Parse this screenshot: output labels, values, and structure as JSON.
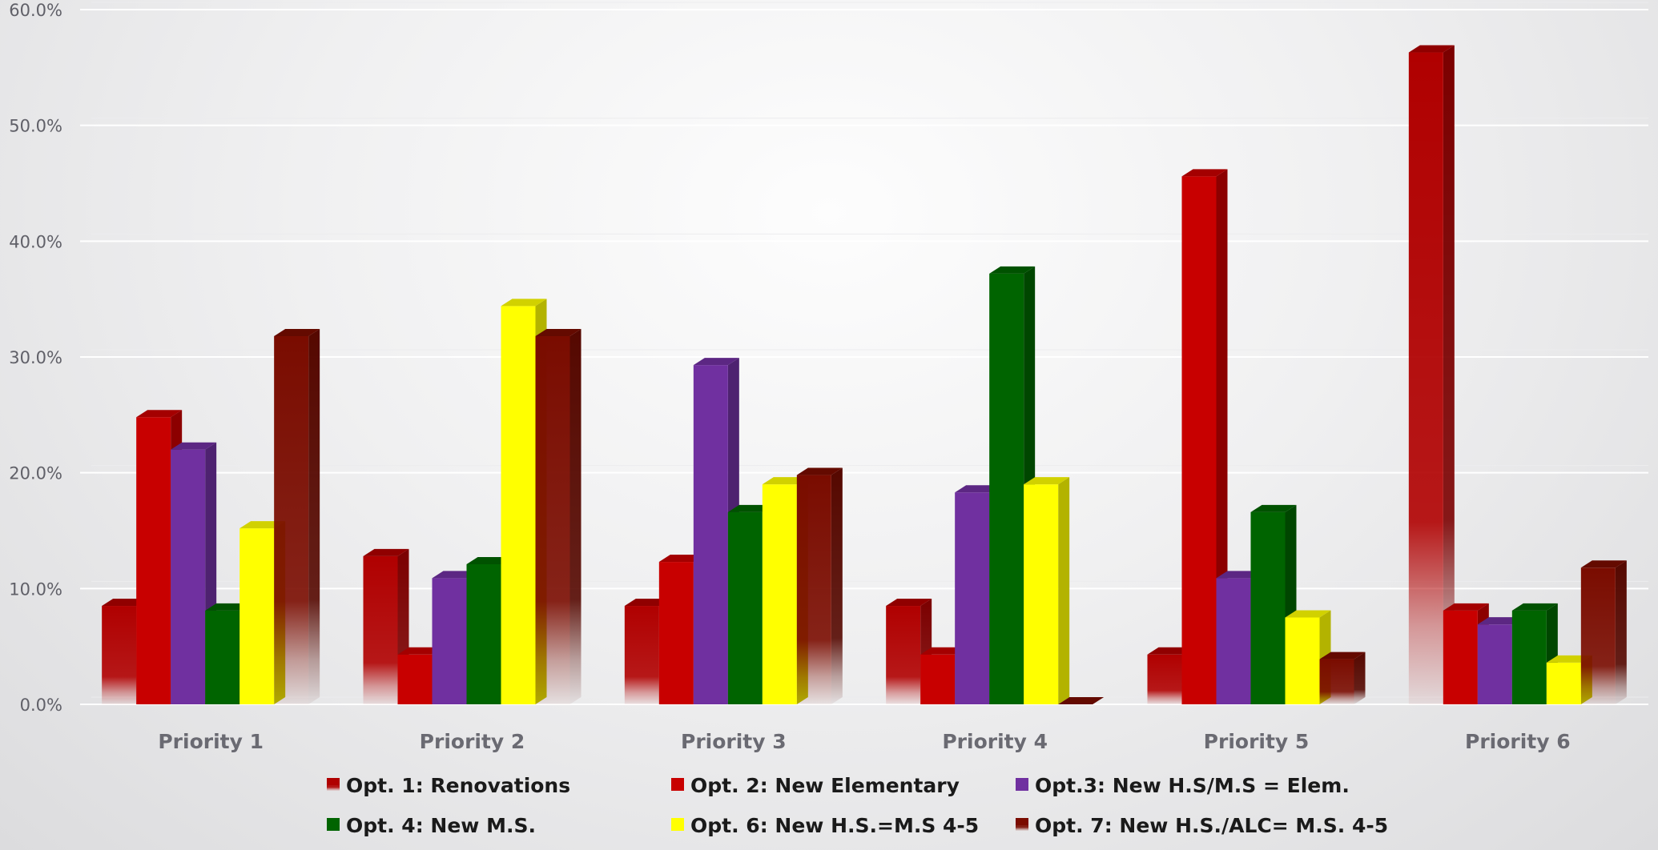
{
  "chart_data": {
    "type": "bar",
    "title": "",
    "xlabel": "",
    "ylabel": "",
    "ylim": [
      0,
      60
    ],
    "yticks": [
      "0.0%",
      "10.0%",
      "20.0%",
      "30.0%",
      "40.0%",
      "50.0%",
      "60.0%"
    ],
    "ytick_values": [
      0,
      10,
      20,
      30,
      40,
      50,
      60
    ],
    "grid": true,
    "legend_position": "bottom",
    "categories": [
      "Priority 1",
      "Priority 2",
      "Priority 3",
      "Priority 4",
      "Priority 5",
      "Priority 6"
    ],
    "series": [
      {
        "name": "Opt. 1: Renovations",
        "color": "#b00000",
        "fade": true,
        "values": [
          8.5,
          12.8,
          8.5,
          8.5,
          4.3,
          56.3
        ]
      },
      {
        "name": "Opt. 2: New Elementary",
        "color": "#c80000",
        "fade": false,
        "values": [
          24.8,
          4.3,
          12.3,
          4.3,
          45.6,
          8.1
        ]
      },
      {
        "name": "Opt.3: New H.S/M.S = Elem.",
        "color": "#7030a0",
        "fade": false,
        "values": [
          22.0,
          10.9,
          29.3,
          18.3,
          10.9,
          6.9
        ]
      },
      {
        "name": "Opt. 4: New M.S.",
        "color": "#006400",
        "fade": false,
        "values": [
          8.1,
          12.1,
          16.6,
          37.2,
          16.6,
          8.1
        ]
      },
      {
        "name": "Opt. 6: New H.S.=M.S 4-5",
        "color": "#ffff00",
        "fade": false,
        "values": [
          15.2,
          34.4,
          19.0,
          19.0,
          7.5,
          3.6
        ]
      },
      {
        "name": "Opt. 7: New H.S./ALC= M.S. 4-5",
        "color": "#7a0c00",
        "fade": true,
        "values": [
          31.8,
          31.8,
          19.8,
          0.0,
          3.9,
          11.8
        ]
      }
    ]
  }
}
